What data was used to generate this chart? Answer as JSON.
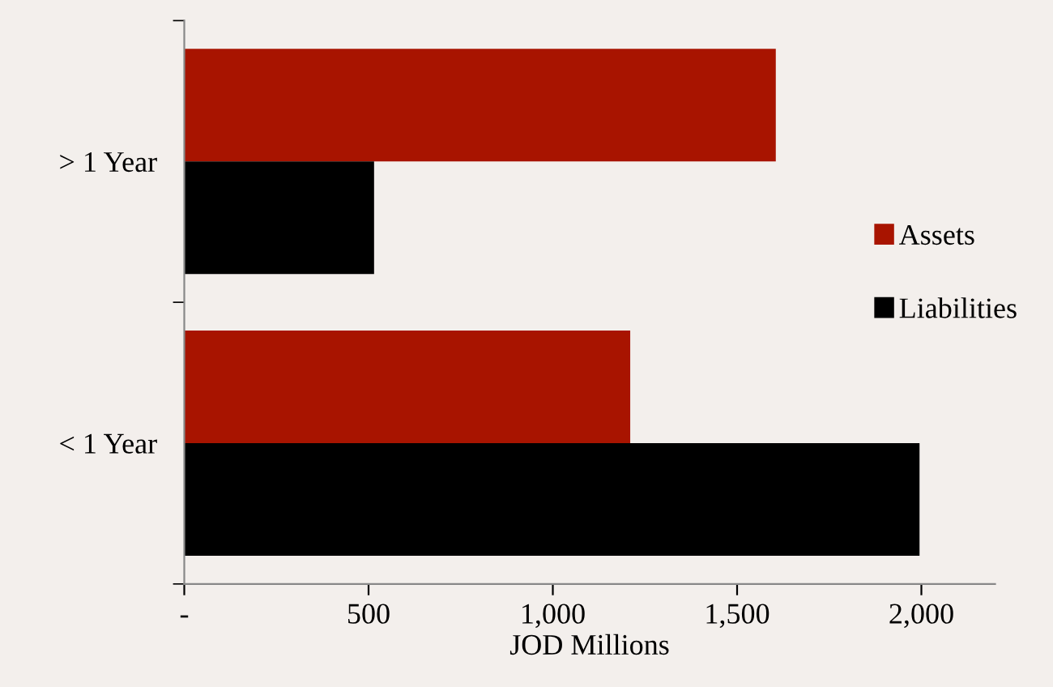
{
  "chart_data": {
    "type": "bar",
    "orientation": "horizontal",
    "xlabel": "JOD Millions",
    "categories": [
      "> 1 Year",
      "< 1 Year"
    ],
    "series": [
      {
        "name": "Assets",
        "color": "#a81400",
        "values": [
          1605,
          1210
        ]
      },
      {
        "name": "Liabilities",
        "color": "#000000",
        "values": [
          515,
          1995
        ]
      }
    ],
    "xlim": [
      0,
      2200
    ],
    "xticks": [
      {
        "value": 0,
        "label": "-"
      },
      500,
      {
        "value": 1000,
        "label": "1,000"
      },
      {
        "value": 1500,
        "label": "1,500"
      },
      {
        "value": 2000,
        "label": "2,000"
      }
    ],
    "grid": false,
    "legend": "right"
  }
}
